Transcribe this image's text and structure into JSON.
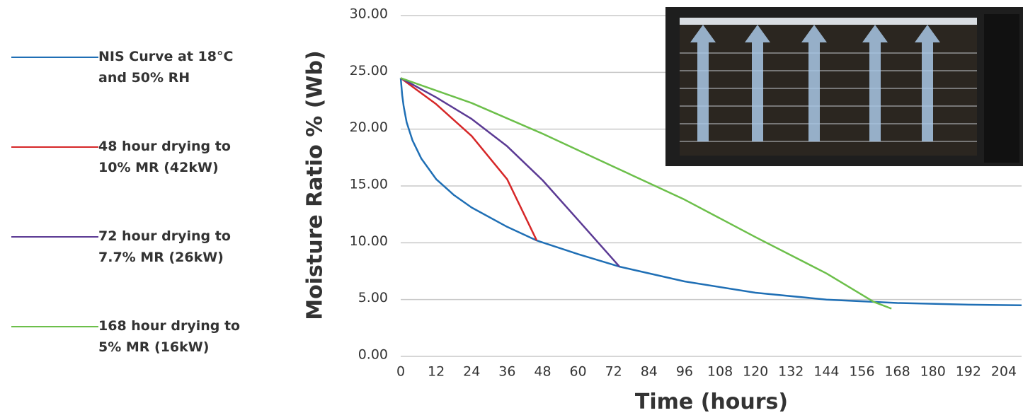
{
  "chart_data": {
    "type": "line",
    "x_label": "Time (hours)",
    "y_label": "Moisture Ratio % (Wb)",
    "xlim": [
      0,
      210
    ],
    "xticks": [
      0,
      12,
      24,
      36,
      48,
      60,
      72,
      84,
      96,
      108,
      120,
      132,
      144,
      156,
      168,
      180,
      192,
      204
    ],
    "ylim": [
      0,
      30
    ],
    "yticks": [
      {
        "value": 0,
        "label": "0.00"
      },
      {
        "value": 5,
        "label": "5.00"
      },
      {
        "value": 10,
        "label": "10.00"
      },
      {
        "value": 15,
        "label": "15.00"
      },
      {
        "value": 20,
        "label": "20.00"
      },
      {
        "value": 25,
        "label": "25.00"
      },
      {
        "value": 30,
        "label": "30.00"
      }
    ],
    "grid": true,
    "series": [
      {
        "name": "NIS Curve at 18°C and 50% RH",
        "color": "#1f6fb5",
        "x": [
          0,
          0.5,
          1,
          2,
          4,
          7,
          12,
          18,
          24,
          36,
          46,
          60,
          74,
          96,
          120,
          144,
          168,
          192,
          210
        ],
        "values": [
          24.5,
          23.0,
          22.0,
          20.6,
          19.0,
          17.4,
          15.6,
          14.2,
          13.1,
          11.4,
          10.2,
          9.0,
          7.9,
          6.6,
          5.6,
          5.0,
          4.7,
          4.55,
          4.5
        ]
      },
      {
        "name": "48 hour drying to 10% MR (42kW)",
        "color": "#d62728",
        "x": [
          0,
          12,
          24,
          36,
          46
        ],
        "values": [
          24.5,
          22.2,
          19.4,
          15.6,
          10.2
        ]
      },
      {
        "name": "72 hour drying to 7.7% MR (26kW)",
        "color": "#5b3a94",
        "x": [
          0,
          12,
          24,
          36,
          48,
          60,
          74
        ],
        "values": [
          24.5,
          22.8,
          20.9,
          18.5,
          15.5,
          12.0,
          7.9
        ]
      },
      {
        "name": "168 hour drying to 5% MR (16kW)",
        "color": "#6cbf4a",
        "x": [
          0,
          24,
          48,
          72,
          96,
          120,
          144,
          160,
          166
        ],
        "values": [
          24.5,
          22.3,
          19.6,
          16.7,
          13.8,
          10.5,
          7.3,
          4.8,
          4.2
        ]
      }
    ]
  }
}
